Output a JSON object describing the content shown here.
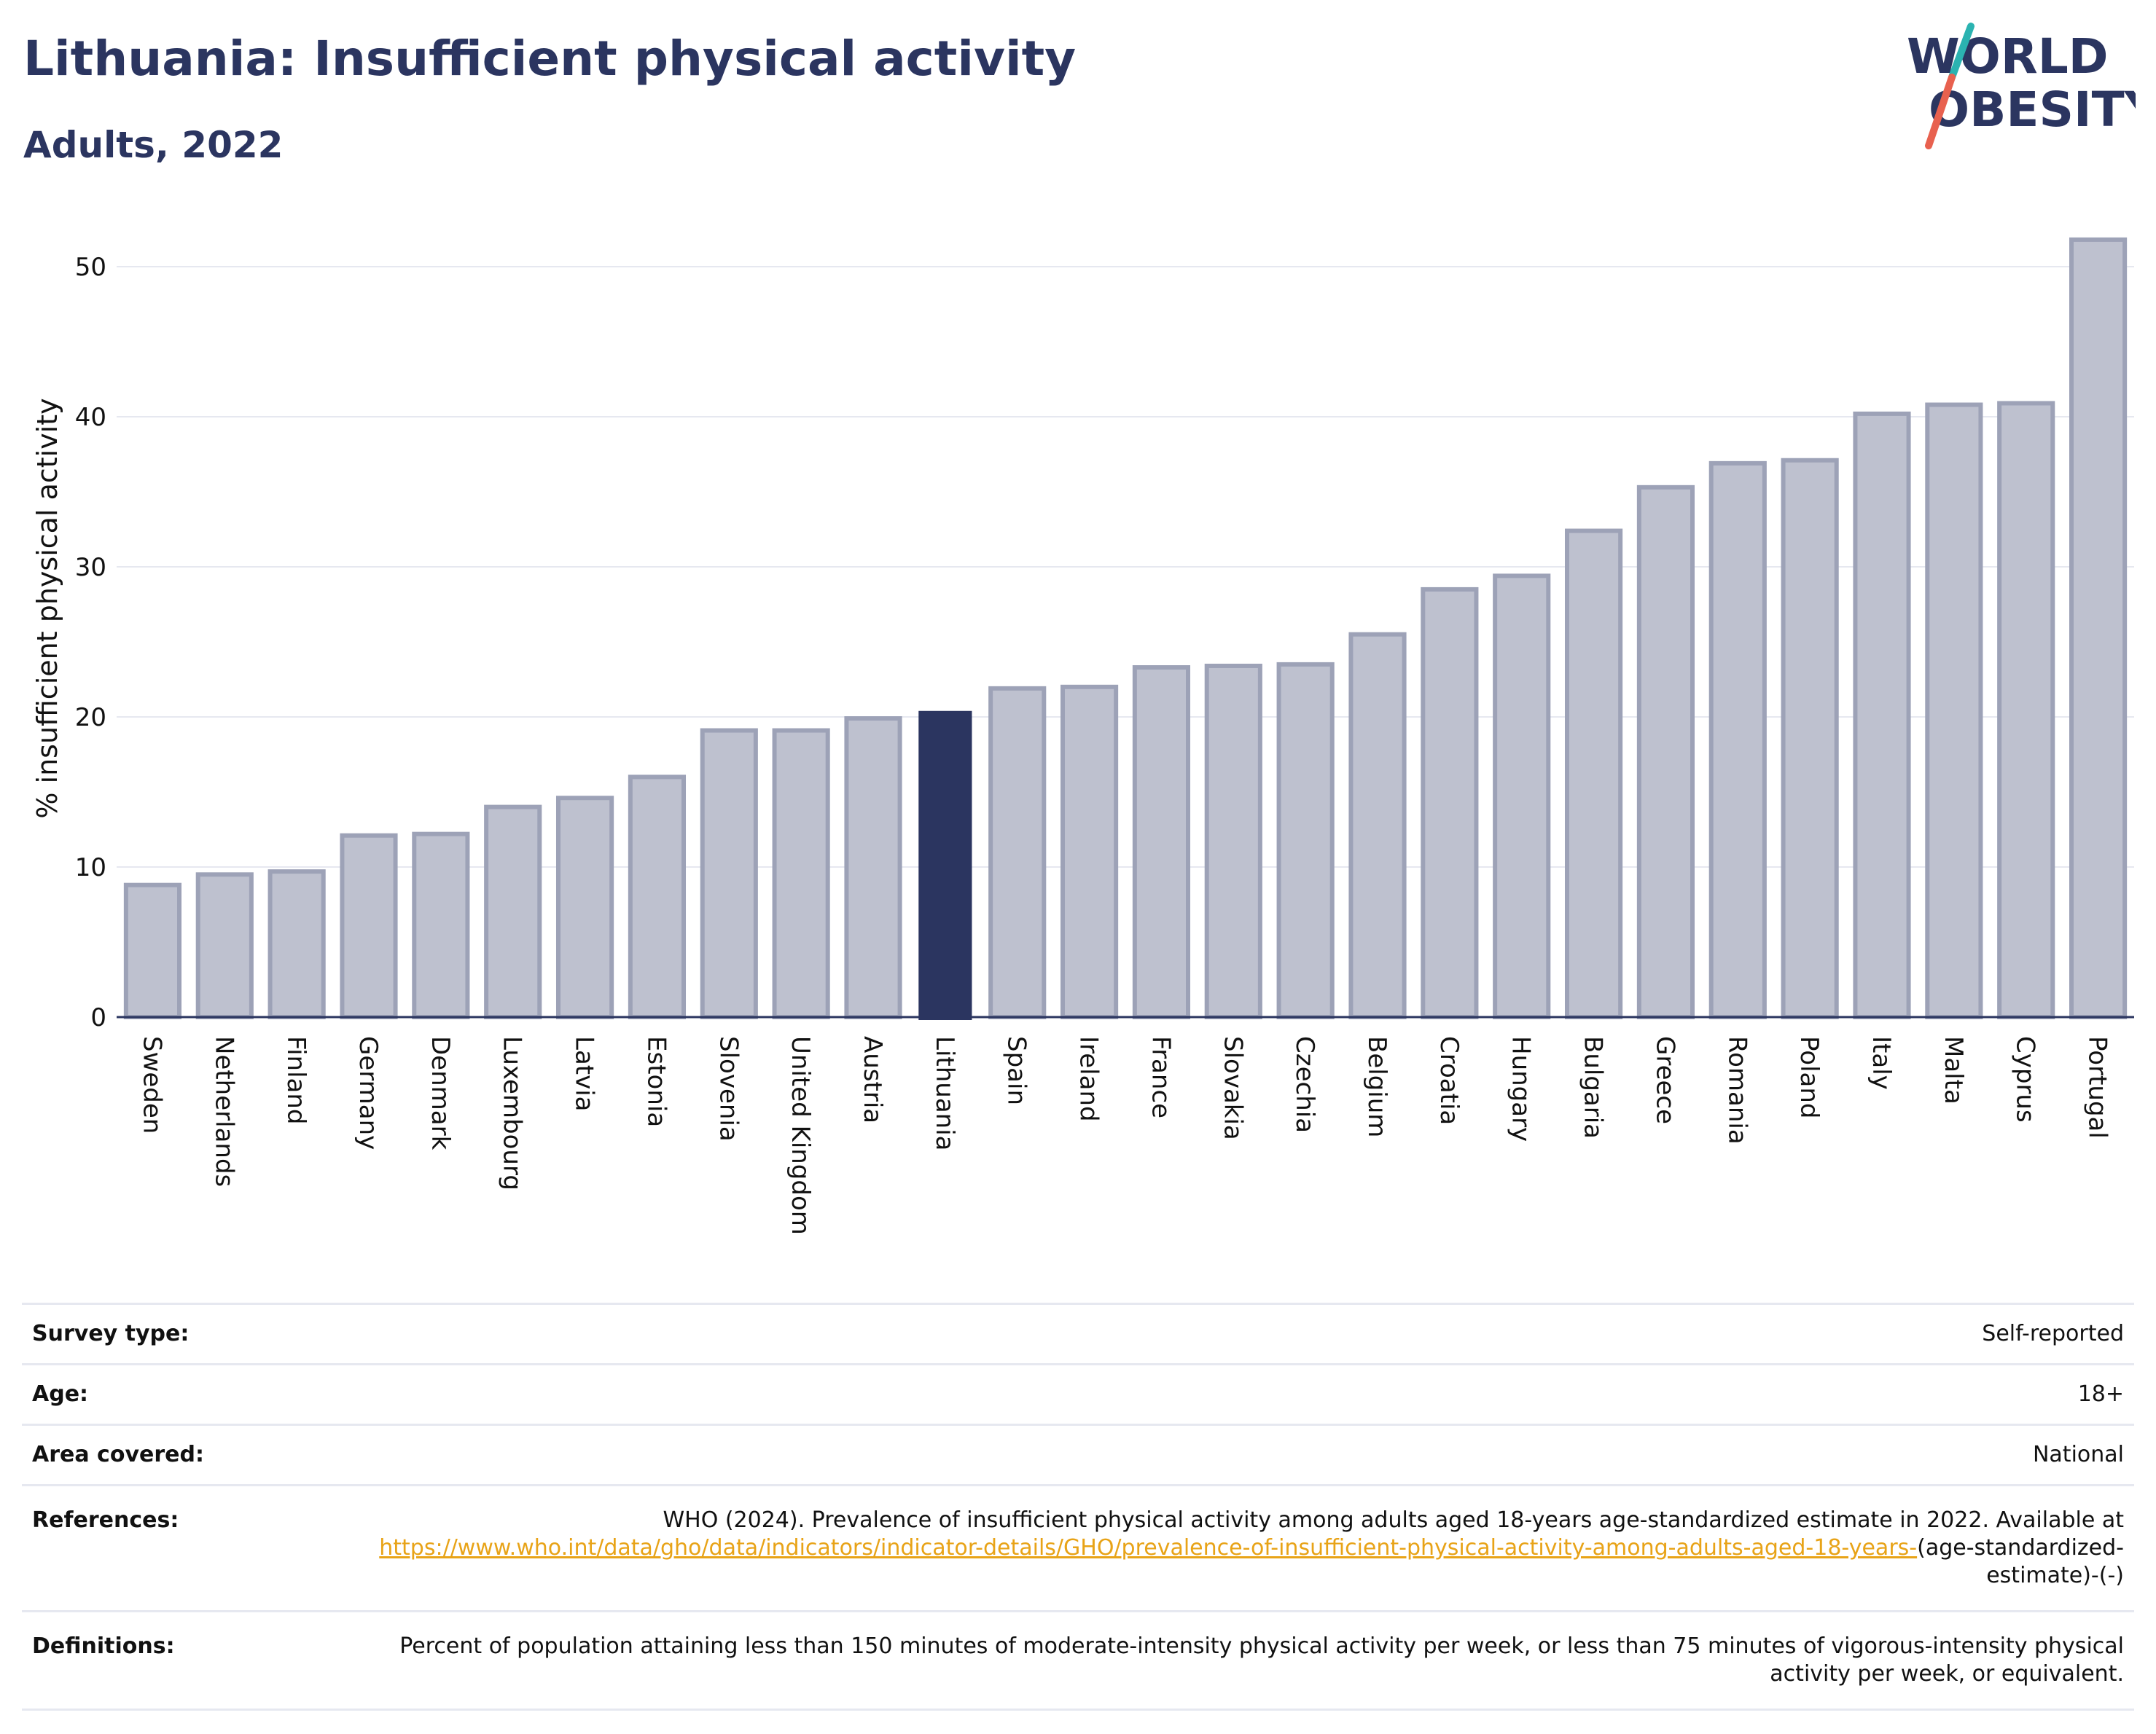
{
  "header": {
    "title": "Lithuania: Insufficient physical activity",
    "subtitle": "Adults, 2022"
  },
  "logo": {
    "line1": "WORLD",
    "line2": "OBESITY",
    "colors": {
      "text": "#2b3560",
      "slash_top": "#2bb3b1",
      "slash_bottom": "#e8614f"
    }
  },
  "chart_data": {
    "type": "bar",
    "ylabel": "% insufficient physical activity",
    "xlabel": "",
    "ylim": [
      0,
      52
    ],
    "yticks": [
      0,
      10,
      20,
      30,
      40,
      50
    ],
    "grid": true,
    "highlight": "Lithuania",
    "colors": {
      "bar_fill": "#bec1cf",
      "bar_stroke": "#9da2b7",
      "highlight": "#2b3560",
      "grid": "#e6e8f0",
      "axis": "#2b3560"
    },
    "categories": [
      "Sweden",
      "Netherlands",
      "Finland",
      "Germany",
      "Denmark",
      "Luxembourg",
      "Latvia",
      "Estonia",
      "Slovenia",
      "United Kingdom",
      "Austria",
      "Lithuania",
      "Spain",
      "Ireland",
      "France",
      "Slovakia",
      "Czechia",
      "Belgium",
      "Croatia",
      "Hungary",
      "Bulgaria",
      "Greece",
      "Romania",
      "Poland",
      "Italy",
      "Malta",
      "Cyprus",
      "Portugal"
    ],
    "values": [
      8.8,
      9.5,
      9.7,
      12.1,
      12.2,
      14.0,
      14.6,
      16.0,
      19.1,
      19.1,
      19.9,
      20.4,
      21.9,
      22.0,
      23.3,
      23.4,
      23.5,
      25.5,
      28.5,
      29.4,
      32.4,
      35.3,
      36.9,
      37.1,
      40.2,
      40.8,
      40.9,
      51.8
    ]
  },
  "info": {
    "survey_type": {
      "label": "Survey type:",
      "value": "Self-reported"
    },
    "age": {
      "label": "Age:",
      "value": "18+"
    },
    "area": {
      "label": "Area covered:",
      "value": "National"
    },
    "references": {
      "label": "References:",
      "text": "WHO (2024). Prevalence of insufficient physical activity among adults aged 18-years age-standardized estimate in 2022. Available at",
      "link": "https://www.who.int/data/gho/data/indicators/indicator-details/GHO/prevalence-of-insufficient-physical-activity-among-adults-aged-18-years-",
      "suffix": "(age-standardized-estimate)-(-)"
    },
    "definitions": {
      "label": "Definitions:",
      "value": "Percent of population attaining less than 150 minutes of moderate-intensity physical activity per week, or less than 75 minutes of vigorous-intensity physical activity per week, or equivalent."
    }
  }
}
